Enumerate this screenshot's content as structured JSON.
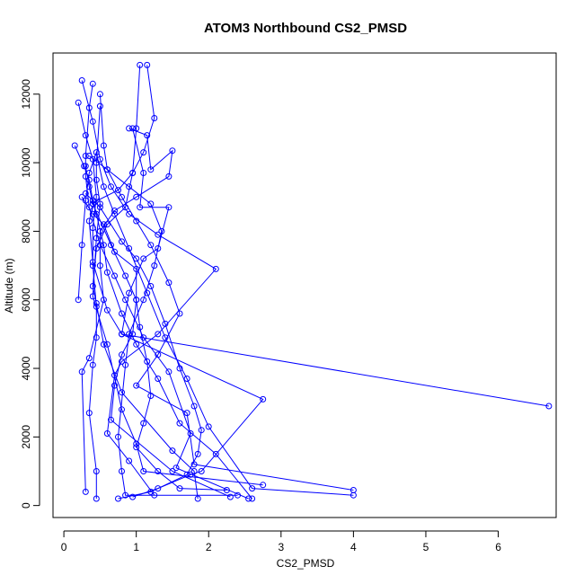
{
  "chart_data": {
    "type": "scatter",
    "title": "ATOM3 Northbound CS2_PMSD",
    "xlabel": "CS2_PMSD",
    "ylabel": "Altitude (m)",
    "xlim": [
      -0.15,
      6.8
    ],
    "ylim": [
      -350,
      13200
    ],
    "xticks": [
      0,
      1,
      2,
      3,
      4,
      5,
      6
    ],
    "yticks": [
      0,
      2000,
      4000,
      6000,
      8000,
      10000,
      12000
    ],
    "grid": false,
    "legend": "none",
    "color": "#0000ff",
    "series": [
      {
        "points": [
          [
            0.15,
            10500
          ],
          [
            0.28,
            9900
          ],
          [
            0.35,
            9500
          ],
          [
            0.4,
            8900
          ],
          [
            0.45,
            8500
          ],
          [
            0.55,
            7600
          ],
          [
            0.6,
            6800
          ],
          [
            0.8,
            5600
          ],
          [
            1.0,
            4700
          ],
          [
            1.3,
            3700
          ],
          [
            1.6,
            2400
          ],
          [
            2.1,
            1500
          ],
          [
            2.6,
            200
          ]
        ]
      },
      {
        "points": [
          [
            0.25,
            12400
          ],
          [
            0.4,
            11200
          ],
          [
            0.5,
            10100
          ],
          [
            0.65,
            9300
          ],
          [
            0.9,
            8500
          ],
          [
            1.3,
            7900
          ],
          [
            2.1,
            6900
          ],
          [
            1.3,
            5000
          ],
          [
            0.8,
            4200
          ],
          [
            0.7,
            3800
          ],
          [
            0.6,
            2100
          ],
          [
            0.9,
            1300
          ],
          [
            1.25,
            300
          ]
        ]
      },
      {
        "points": [
          [
            1.05,
            12850
          ],
          [
            1.0,
            11000
          ],
          [
            0.95,
            9700
          ],
          [
            0.85,
            8700
          ],
          [
            0.6,
            8200
          ],
          [
            0.45,
            7500
          ],
          [
            0.4,
            6400
          ],
          [
            0.45,
            5900
          ],
          [
            0.55,
            4700
          ],
          [
            0.8,
            3300
          ],
          [
            1.5,
            1600
          ],
          [
            1.8,
            1000
          ],
          [
            1.85,
            200
          ]
        ]
      },
      {
        "points": [
          [
            1.15,
            12850
          ],
          [
            1.25,
            11300
          ],
          [
            1.1,
            10300
          ],
          [
            0.95,
            9700
          ],
          [
            0.75,
            9200
          ],
          [
            0.42,
            8850
          ],
          [
            0.35,
            8300
          ],
          [
            0.4,
            7100
          ],
          [
            0.6,
            5700
          ],
          [
            0.8,
            5000
          ],
          [
            6.7,
            2900
          ]
        ]
      },
      {
        "points": [
          [
            0.4,
            12300
          ],
          [
            0.35,
            11600
          ],
          [
            0.3,
            10200
          ],
          [
            0.3,
            9600
          ],
          [
            0.35,
            8700
          ],
          [
            0.5,
            7600
          ],
          [
            0.7,
            6700
          ],
          [
            0.85,
            6000
          ],
          [
            1.1,
            4900
          ],
          [
            1.45,
            3900
          ],
          [
            1.75,
            2100
          ],
          [
            1.55,
            1100
          ],
          [
            2.55,
            200
          ]
        ]
      },
      {
        "points": [
          [
            0.5,
            11650
          ],
          [
            0.45,
            10000
          ],
          [
            0.45,
            9500
          ],
          [
            0.5,
            8800
          ],
          [
            0.45,
            7800
          ],
          [
            0.4,
            6100
          ],
          [
            0.6,
            4700
          ],
          [
            0.8,
            2800
          ],
          [
            1.0,
            1800
          ],
          [
            1.1,
            1000
          ],
          [
            2.75,
            600
          ]
        ]
      },
      {
        "points": [
          [
            0.2,
            11750
          ],
          [
            0.3,
            10800
          ],
          [
            0.4,
            10100
          ],
          [
            0.45,
            9000
          ],
          [
            0.4,
            8100
          ],
          [
            0.4,
            7000
          ],
          [
            0.45,
            5800
          ],
          [
            0.45,
            4900
          ],
          [
            0.4,
            4100
          ],
          [
            0.35,
            2700
          ],
          [
            0.45,
            1000
          ],
          [
            0.45,
            200
          ]
        ]
      },
      {
        "points": [
          [
            0.2,
            6000
          ],
          [
            0.25,
            7600
          ],
          [
            0.3,
            8900
          ],
          [
            0.35,
            9700
          ],
          [
            0.45,
            10300
          ],
          [
            0.55,
            9300
          ],
          [
            0.7,
            8500
          ],
          [
            0.9,
            7500
          ],
          [
            1.15,
            6200
          ],
          [
            1.4,
            4900
          ],
          [
            1.7,
            3700
          ],
          [
            2.0,
            2300
          ],
          [
            2.6,
            500
          ],
          [
            4.0,
            300
          ]
        ]
      },
      {
        "points": [
          [
            0.5,
            12000
          ],
          [
            0.55,
            10500
          ],
          [
            0.6,
            9800
          ],
          [
            0.8,
            9000
          ],
          [
            1.0,
            8300
          ],
          [
            1.2,
            7600
          ],
          [
            1.45,
            6500
          ],
          [
            1.6,
            5600
          ],
          [
            1.3,
            4400
          ],
          [
            1.0,
            3500
          ],
          [
            1.7,
            2700
          ],
          [
            1.8,
            1200
          ],
          [
            4.0,
            450
          ]
        ]
      },
      {
        "points": [
          [
            0.9,
            11000
          ],
          [
            1.15,
            10800
          ],
          [
            1.2,
            9800
          ],
          [
            1.5,
            10350
          ],
          [
            1.45,
            9600
          ],
          [
            1.0,
            9000
          ],
          [
            0.7,
            8600
          ],
          [
            0.5,
            8000
          ],
          [
            0.5,
            7000
          ],
          [
            0.55,
            6000
          ],
          [
            0.35,
            4300
          ],
          [
            0.25,
            3900
          ],
          [
            0.3,
            400
          ]
        ]
      },
      {
        "points": [
          [
            0.3,
            9900
          ],
          [
            0.35,
            9300
          ],
          [
            0.4,
            8800
          ],
          [
            0.65,
            7600
          ],
          [
            0.85,
            6700
          ],
          [
            1.0,
            6000
          ],
          [
            1.05,
            5200
          ],
          [
            1.15,
            4200
          ],
          [
            1.2,
            3200
          ],
          [
            1.1,
            2400
          ],
          [
            1.0,
            1700
          ],
          [
            1.3,
            1000
          ],
          [
            1.6,
            500
          ],
          [
            2.25,
            450
          ]
        ]
      },
      {
        "points": [
          [
            0.95,
            11000
          ],
          [
            1.1,
            9700
          ],
          [
            1.05,
            8700
          ],
          [
            1.45,
            8700
          ],
          [
            1.3,
            7500
          ],
          [
            1.1,
            7200
          ],
          [
            0.9,
            6200
          ],
          [
            0.8,
            5000
          ],
          [
            2.75,
            3100
          ],
          [
            1.9,
            1000
          ],
          [
            1.75,
            900
          ],
          [
            1.3,
            500
          ],
          [
            0.95,
            250
          ]
        ]
      },
      {
        "points": [
          [
            0.35,
            10200
          ],
          [
            0.6,
            9800
          ],
          [
            0.9,
            9300
          ],
          [
            1.2,
            8800
          ],
          [
            1.35,
            8000
          ],
          [
            1.25,
            7000
          ],
          [
            1.1,
            6000
          ],
          [
            0.9,
            5000
          ],
          [
            0.85,
            4100
          ],
          [
            0.75,
            2000
          ],
          [
            0.8,
            1000
          ],
          [
            0.85,
            300
          ],
          [
            2.4,
            300
          ]
        ]
      },
      {
        "points": [
          [
            0.3,
            9100
          ],
          [
            0.5,
            8700
          ],
          [
            0.8,
            7700
          ],
          [
            1.0,
            7200
          ],
          [
            1.2,
            6400
          ],
          [
            1.4,
            5300
          ],
          [
            1.6,
            4000
          ],
          [
            1.8,
            2900
          ],
          [
            1.9,
            2200
          ],
          [
            1.85,
            1500
          ],
          [
            1.7,
            900
          ],
          [
            1.2,
            400
          ],
          [
            0.75,
            200
          ]
        ]
      },
      {
        "points": [
          [
            0.25,
            9000
          ],
          [
            0.4,
            8500
          ],
          [
            0.55,
            8200
          ],
          [
            0.7,
            7400
          ],
          [
            1.0,
            6900
          ],
          [
            1.0,
            6000
          ],
          [
            0.95,
            5000
          ],
          [
            0.8,
            4400
          ],
          [
            0.7,
            3500
          ],
          [
            0.65,
            2500
          ],
          [
            1.5,
            1000
          ],
          [
            2.3,
            250
          ]
        ]
      }
    ]
  }
}
